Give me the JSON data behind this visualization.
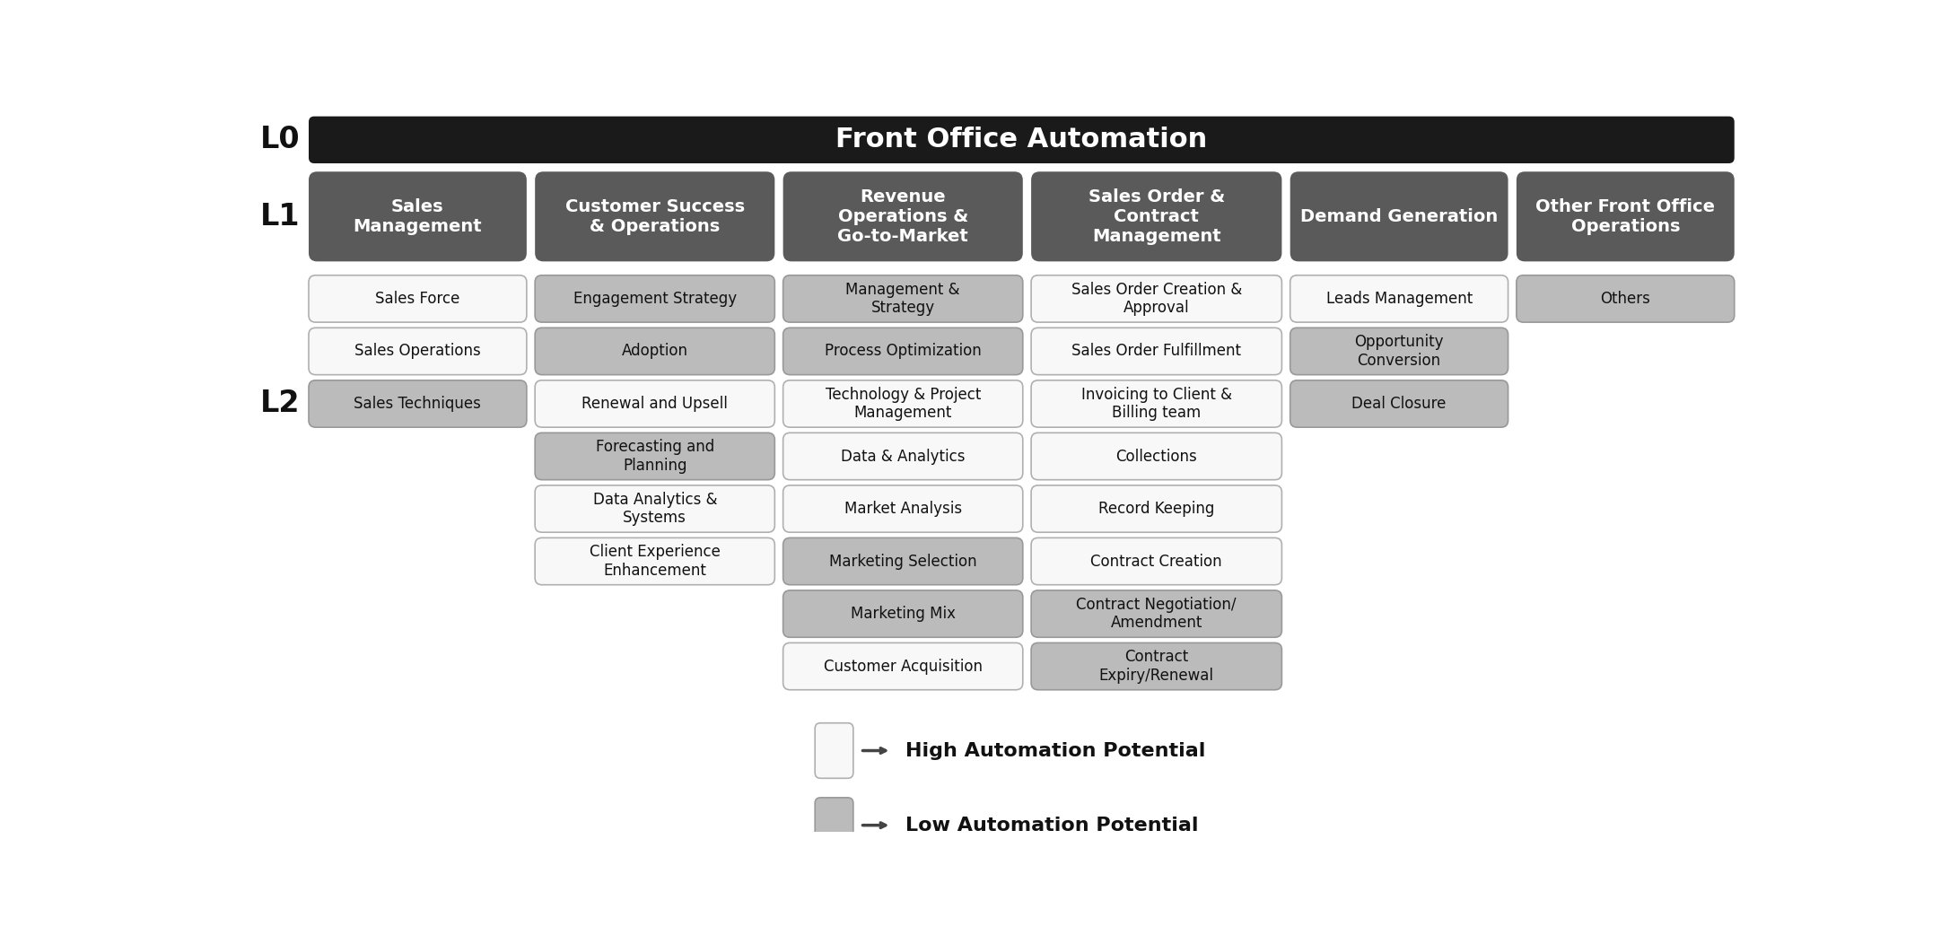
{
  "title": "Front Office Automation",
  "title_color": "#ffffff",
  "title_bg": "#1a1a1a",
  "level_label_color": "#111111",
  "level_label_fontsize": 24,
  "columns": [
    {
      "header": "Sales\nManagement",
      "header_color": "#5a5a5a",
      "header_text_color": "#ffffff",
      "items": [
        {
          "text": "Sales Force",
          "color": "high"
        },
        {
          "text": "Sales Operations",
          "color": "high"
        },
        {
          "text": "Sales Techniques",
          "color": "low"
        }
      ]
    },
    {
      "header": "Customer Success\n& Operations",
      "header_color": "#5a5a5a",
      "header_text_color": "#ffffff",
      "items": [
        {
          "text": "Engagement Strategy",
          "color": "low"
        },
        {
          "text": "Adoption",
          "color": "low"
        },
        {
          "text": "Renewal and Upsell",
          "color": "high"
        },
        {
          "text": "Forecasting and\nPlanning",
          "color": "low"
        },
        {
          "text": "Data Analytics &\nSystems",
          "color": "high"
        },
        {
          "text": "Client Experience\nEnhancement",
          "color": "high"
        }
      ]
    },
    {
      "header": "Revenue\nOperations &\nGo-to-Market",
      "header_color": "#5a5a5a",
      "header_text_color": "#ffffff",
      "items": [
        {
          "text": "Management &\nStrategy",
          "color": "low"
        },
        {
          "text": "Process Optimization",
          "color": "low"
        },
        {
          "text": "Technology & Project\nManagement",
          "color": "high"
        },
        {
          "text": "Data & Analytics",
          "color": "high"
        },
        {
          "text": "Market Analysis",
          "color": "high"
        },
        {
          "text": "Marketing Selection",
          "color": "low"
        },
        {
          "text": "Marketing Mix",
          "color": "low"
        },
        {
          "text": "Customer Acquisition",
          "color": "high"
        }
      ]
    },
    {
      "header": "Sales Order &\nContract\nManagement",
      "header_color": "#5a5a5a",
      "header_text_color": "#ffffff",
      "items": [
        {
          "text": "Sales Order Creation &\nApproval",
          "color": "high"
        },
        {
          "text": "Sales Order Fulfillment",
          "color": "high"
        },
        {
          "text": "Invoicing to Client &\nBilling team",
          "color": "high"
        },
        {
          "text": "Collections",
          "color": "high"
        },
        {
          "text": "Record Keeping",
          "color": "high"
        },
        {
          "text": "Contract Creation",
          "color": "high"
        },
        {
          "text": "Contract Negotiation/\nAmendment",
          "color": "low"
        },
        {
          "text": "Contract\nExpiry/Renewal",
          "color": "low"
        }
      ]
    },
    {
      "header": "Demand Generation",
      "header_color": "#5a5a5a",
      "header_text_color": "#ffffff",
      "items": [
        {
          "text": "Leads Management",
          "color": "high"
        },
        {
          "text": "Opportunity\nConversion",
          "color": "low"
        },
        {
          "text": "Deal Closure",
          "color": "low"
        }
      ]
    },
    {
      "header": "Other Front Office\nOperations",
      "header_color": "#5a5a5a",
      "header_text_color": "#ffffff",
      "items": [
        {
          "text": "Others",
          "color": "low"
        }
      ]
    }
  ],
  "high_color": "#f8f8f8",
  "low_color": "#bbbbbb",
  "high_border": "#b0b0b0",
  "low_border": "#999999",
  "item_text_color": "#111111",
  "item_fontsize": 12,
  "header_fontsize": 14,
  "legend_high_text": "High Automation Potential",
  "legend_low_text": "Low Automation Potential",
  "legend_fontsize": 16
}
